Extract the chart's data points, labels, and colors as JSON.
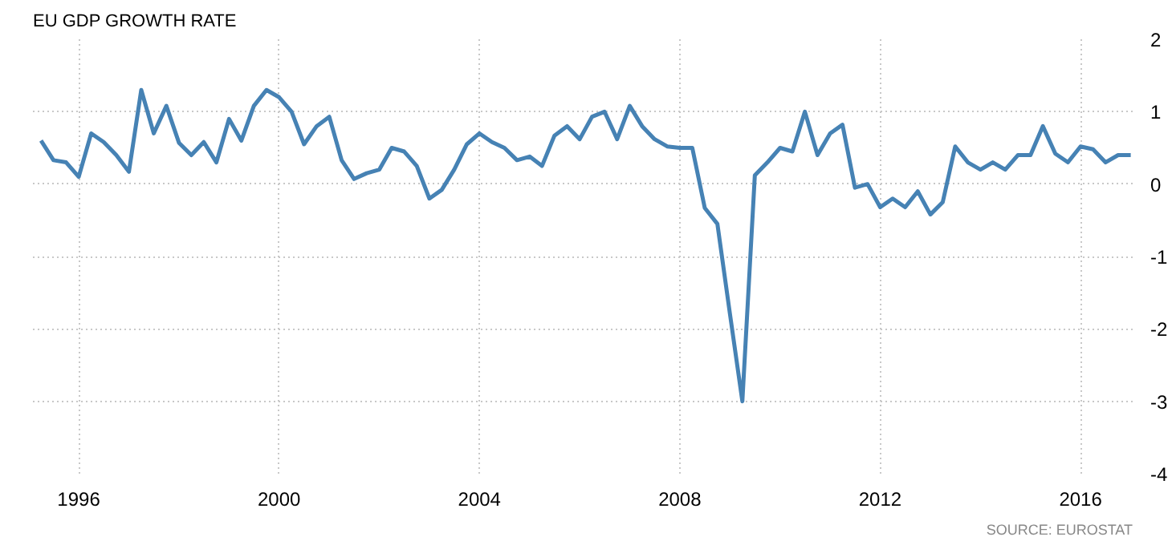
{
  "chart_data": {
    "type": "line",
    "title": "EU GDP GROWTH RATE",
    "annotations": [
      "SOURCE: EUROSTAT"
    ],
    "x": [
      "1995-04",
      "1995-07",
      "1995-10",
      "1996-01",
      "1996-04",
      "1996-07",
      "1996-10",
      "1997-01",
      "1997-04",
      "1997-07",
      "1997-10",
      "1998-01",
      "1998-04",
      "1998-07",
      "1998-10",
      "1999-01",
      "1999-04",
      "1999-07",
      "1999-10",
      "2000-01",
      "2000-04",
      "2000-07",
      "2000-10",
      "2001-01",
      "2001-04",
      "2001-07",
      "2001-10",
      "2002-01",
      "2002-04",
      "2002-07",
      "2002-10",
      "2003-01",
      "2003-04",
      "2003-07",
      "2003-10",
      "2004-01",
      "2004-04",
      "2004-07",
      "2004-10",
      "2005-01",
      "2005-04",
      "2005-07",
      "2005-10",
      "2006-01",
      "2006-04",
      "2006-07",
      "2006-10",
      "2007-01",
      "2007-04",
      "2007-07",
      "2007-10",
      "2008-01",
      "2008-04",
      "2008-07",
      "2008-10",
      "2009-01",
      "2009-04",
      "2009-07",
      "2009-10",
      "2010-01",
      "2010-04",
      "2010-07",
      "2010-10",
      "2011-01",
      "2011-04",
      "2011-07",
      "2011-10",
      "2012-01",
      "2012-04",
      "2012-07",
      "2012-10",
      "2013-01",
      "2013-04",
      "2013-07",
      "2013-10",
      "2014-01",
      "2014-04",
      "2014-07",
      "2014-10",
      "2015-01",
      "2015-04",
      "2015-07",
      "2015-10",
      "2016-01",
      "2016-04",
      "2016-07",
      "2016-10",
      "2017-01"
    ],
    "series": [
      {
        "color": "#4682b4",
        "values": [
          0.6,
          0.33,
          0.3,
          0.1,
          0.7,
          0.58,
          0.4,
          0.17,
          1.3,
          0.7,
          1.08,
          0.57,
          0.4,
          0.58,
          0.3,
          0.9,
          0.6,
          1.08,
          1.3,
          1.2,
          1.0,
          0.55,
          0.8,
          0.93,
          0.33,
          0.07,
          0.15,
          0.2,
          0.5,
          0.45,
          0.25,
          -0.2,
          -0.08,
          0.2,
          0.55,
          0.7,
          0.58,
          0.5,
          0.33,
          0.38,
          0.25,
          0.67,
          0.8,
          0.62,
          0.93,
          1.0,
          0.62,
          1.08,
          0.8,
          0.62,
          0.52,
          0.5,
          0.5,
          -0.33,
          -0.55,
          -1.8,
          -3.0,
          0.12,
          0.3,
          0.5,
          0.45,
          1.0,
          0.4,
          0.7,
          0.82,
          -0.05,
          0.0,
          -0.32,
          -0.2,
          -0.32,
          -0.1,
          -0.42,
          -0.25,
          0.52,
          0.3,
          0.2,
          0.3,
          0.2,
          0.4,
          0.4,
          0.8,
          0.42,
          0.3,
          0.52,
          0.48,
          0.3,
          0.4,
          0.4
        ]
      }
    ],
    "xlim": [
      "1995-02",
      "2017-01-15"
    ],
    "xticks": [
      "1996",
      "2000",
      "2004",
      "2008",
      "2012",
      "2016"
    ],
    "ylim": [
      -4,
      2
    ],
    "yticks": [
      -4,
      -3,
      -2,
      -1,
      0,
      1,
      2
    ],
    "grid": true,
    "line_style": "solid"
  }
}
